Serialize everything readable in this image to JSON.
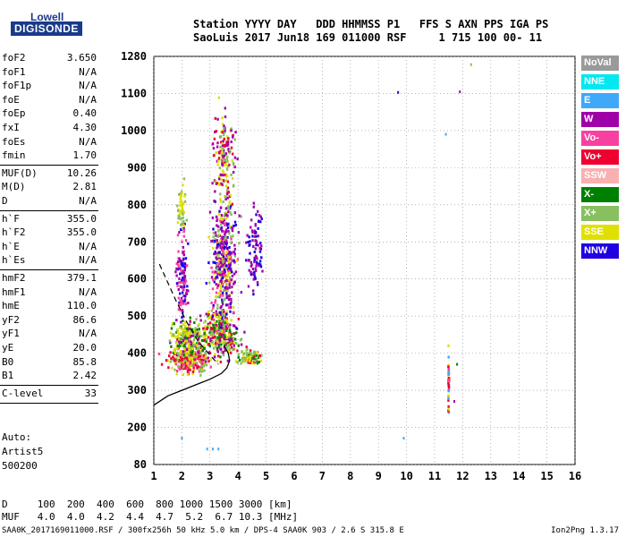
{
  "logo": {
    "line1": "Lowell",
    "line2": "DIGISONDE"
  },
  "header": {
    "line1": "Station YYYY DAY   DDD HHMMSS P1   FFS S AXN PPS IGA PS",
    "line2": "SaoLuis 2017 Jun18 169 011000 RSF     1 715 100 00- 11"
  },
  "params": [
    {
      "k": "foF2",
      "v": "3.650"
    },
    {
      "k": "foF1",
      "v": "N/A"
    },
    {
      "k": "foF1p",
      "v": "N/A"
    },
    {
      "k": "foE",
      "v": "N/A"
    },
    {
      "k": "foEp",
      "v": "0.40"
    },
    {
      "k": "fxI",
      "v": "4.30"
    },
    {
      "k": "foEs",
      "v": "N/A"
    },
    {
      "k": "fmin",
      "v": "1.70"
    },
    {
      "k": "MUF(D)",
      "v": "10.26"
    },
    {
      "k": "M(D)",
      "v": "2.81"
    },
    {
      "k": "D",
      "v": "N/A"
    },
    {
      "k": "h`F",
      "v": "355.0"
    },
    {
      "k": "h`F2",
      "v": "355.0"
    },
    {
      "k": "h`E",
      "v": "N/A"
    },
    {
      "k": "h`Es",
      "v": "N/A"
    },
    {
      "k": "hmF2",
      "v": "379.1"
    },
    {
      "k": "hmF1",
      "v": "N/A"
    },
    {
      "k": "hmE",
      "v": "110.0"
    },
    {
      "k": "yF2",
      "v": "86.6"
    },
    {
      "k": "yF1",
      "v": "N/A"
    },
    {
      "k": "yE",
      "v": "20.0"
    },
    {
      "k": "B0",
      "v": "85.8"
    },
    {
      "k": "B1",
      "v": "2.42"
    },
    {
      "k": "C-level",
      "v": "33"
    }
  ],
  "auto": {
    "l1": "Auto:",
    "l2": "Artist5",
    "l3": "500200"
  },
  "legend": [
    {
      "label": "NoVal",
      "color": "#9a9a9a"
    },
    {
      "label": "NNE",
      "color": "#00e8f0"
    },
    {
      "label": "E",
      "color": "#40a8f8"
    },
    {
      "label": "W",
      "color": "#a000a8"
    },
    {
      "label": "Vo-",
      "color": "#f840a0"
    },
    {
      "label": "Vo+",
      "color": "#f00030"
    },
    {
      "label": "SSW",
      "color": "#f8b0b0"
    },
    {
      "label": "X-",
      "color": "#008000"
    },
    {
      "label": "X+",
      "color": "#88c060"
    },
    {
      "label": "SSE",
      "color": "#e0e000"
    },
    {
      "label": "NNW",
      "color": "#2000e0"
    }
  ],
  "muf_table": {
    "row1": "D     100  200  400  600  800 1000 1500 3000 [km]",
    "row2": "MUF   4.0  4.0  4.2  4.4  4.7  5.2  6.7 10.3 [MHz]"
  },
  "footer": {
    "left": "SAA0K_2017169011000.RSF / 300fx256h 50 kHz 5.0 km / DPS-4 SAA0K 903 / 2.6 S 315.8 E",
    "right": "Ion2Png 1.3.17"
  },
  "chart_data": {
    "type": "scatter",
    "title": "",
    "xlabel": "",
    "ylabel": "",
    "xlim": [
      1,
      16
    ],
    "ylim": [
      80,
      1280
    ],
    "xticks": [
      1,
      2,
      3,
      4,
      5,
      6,
      7,
      8,
      9,
      10,
      11,
      12,
      13,
      14,
      15,
      16
    ],
    "yticks": [
      80,
      200,
      300,
      400,
      500,
      600,
      700,
      800,
      900,
      1000,
      1100,
      1280
    ],
    "grid": true,
    "profile_curve": [
      [
        1.0,
        260
      ],
      [
        1.5,
        285
      ],
      [
        2.0,
        300
      ],
      [
        2.5,
        315
      ],
      [
        3.0,
        330
      ],
      [
        3.4,
        345
      ],
      [
        3.6,
        360
      ],
      [
        3.7,
        380
      ],
      [
        3.65,
        400
      ],
      [
        3.5,
        420
      ]
    ],
    "trace_curve": [
      [
        1.2,
        640
      ],
      [
        1.5,
        590
      ],
      [
        1.8,
        540
      ],
      [
        2.2,
        480
      ],
      [
        2.6,
        430
      ],
      [
        3.0,
        395
      ],
      [
        3.3,
        370
      ]
    ],
    "clusters": [
      {
        "xc": 2.3,
        "yc": 380,
        "sx": 0.7,
        "sy": 35,
        "n": 260,
        "palette": [
          "#f00030",
          "#f00030",
          "#f840a0",
          "#e0e000",
          "#88c060"
        ]
      },
      {
        "xc": 2.2,
        "yc": 440,
        "sx": 0.6,
        "sy": 45,
        "n": 260,
        "palette": [
          "#e0e000",
          "#88c060",
          "#a000a8",
          "#008000",
          "#e0e000"
        ]
      },
      {
        "xc": 3.4,
        "yc": 450,
        "sx": 0.6,
        "sy": 60,
        "n": 300,
        "palette": [
          "#e0e000",
          "#88c060",
          "#a000a8",
          "#f00030",
          "#008000"
        ]
      },
      {
        "xc": 3.5,
        "yc": 650,
        "sx": 0.45,
        "sy": 170,
        "n": 460,
        "palette": [
          "#a000a8",
          "#a000a8",
          "#e0e000",
          "#88c060",
          "#2000e0",
          "#f840a0"
        ]
      },
      {
        "xc": 3.5,
        "yc": 930,
        "sx": 0.35,
        "sy": 120,
        "n": 160,
        "palette": [
          "#a000a8",
          "#e0e000",
          "#f00030",
          "#88c060"
        ]
      },
      {
        "xc": 2.0,
        "yc": 620,
        "sx": 0.2,
        "sy": 120,
        "n": 110,
        "palette": [
          "#a000a8",
          "#2000e0",
          "#f840a0"
        ]
      },
      {
        "xc": 2.0,
        "yc": 790,
        "sx": 0.15,
        "sy": 60,
        "n": 50,
        "palette": [
          "#e0e000",
          "#88c060"
        ]
      },
      {
        "xc": 4.4,
        "yc": 390,
        "sx": 0.5,
        "sy": 20,
        "n": 90,
        "palette": [
          "#88c060",
          "#e0e000",
          "#f00030",
          "#008000"
        ]
      },
      {
        "xc": 4.6,
        "yc": 680,
        "sx": 0.25,
        "sy": 120,
        "n": 90,
        "palette": [
          "#a000a8",
          "#2000e0"
        ]
      },
      {
        "xc": 11.5,
        "yc": 330,
        "sx": 0.02,
        "sy": 100,
        "n": 45,
        "palette": [
          "#40a8f8",
          "#f00030",
          "#e0e000",
          "#f840a0"
        ]
      }
    ],
    "isolated_points": [
      [
        12.3,
        1240,
        "#88c060"
      ],
      [
        9.7,
        1105,
        "#2000e0"
      ],
      [
        11.9,
        1108,
        "#a000a8"
      ],
      [
        11.4,
        990,
        "#40a8f8"
      ],
      [
        11.8,
        370,
        "#008000"
      ],
      [
        11.7,
        270,
        "#a000a8"
      ],
      [
        9.9,
        165,
        "#40a8f8"
      ],
      [
        2.0,
        165,
        "#40a8f8"
      ],
      [
        2.9,
        130,
        "#40a8f8"
      ],
      [
        3.1,
        130,
        "#40a8f8"
      ],
      [
        3.3,
        130,
        "#40a8f8"
      ]
    ]
  }
}
